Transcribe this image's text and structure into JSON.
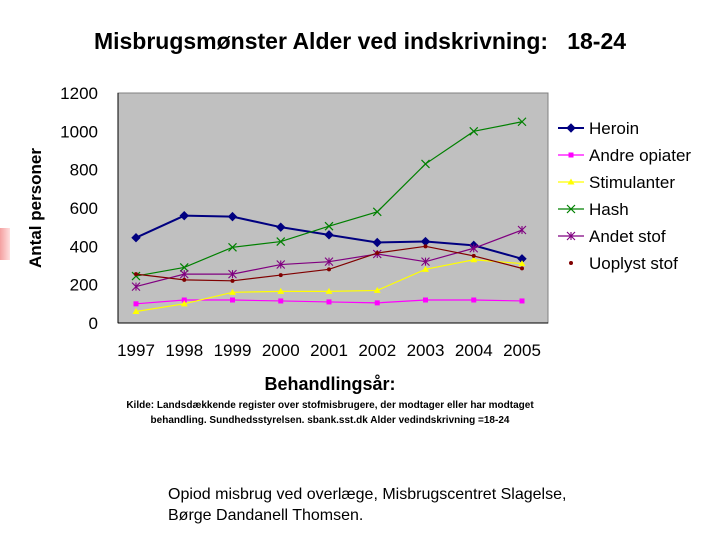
{
  "slide": {
    "title": "Misbrugsmønster Alder ved indskrivning:   18-24",
    "source_text": "Kilde: Landsdækkende register over stofmisbrugere, der modtager eller har modtaget behandling. Sundhedsstyrelsen. sbank.sst.dk Alder vedindskrivning =18-24",
    "footer_line1": "Opiod misbrug ved overlæge, Misbrugscentret Slagelse,",
    "footer_line2": "Børge Dandanell Thomsen."
  },
  "chart_data": {
    "type": "line",
    "title": "Misbrugsmønster Alder ved indskrivning:   18-24",
    "xlabel": "Behandlingsår:",
    "ylabel": "Antal personer",
    "categories": [
      "1997",
      "1998",
      "1999",
      "2000",
      "2001",
      "2002",
      "2003",
      "2004",
      "2005"
    ],
    "yticks": [
      "0",
      "200",
      "400",
      "600",
      "800",
      "1000",
      "1200"
    ],
    "ylim": [
      0,
      1200
    ],
    "grid": false,
    "plot_background": "#c0c0c0",
    "legend_position": "right",
    "series": [
      {
        "name": "Heroin",
        "color": "#000080",
        "marker": "diamond",
        "values": [
          445,
          560,
          555,
          500,
          460,
          420,
          425,
          405,
          335
        ]
      },
      {
        "name": "Andre opiater",
        "color": "#ff00ff",
        "marker": "square",
        "values": [
          100,
          120,
          120,
          115,
          110,
          105,
          120,
          120,
          115
        ]
      },
      {
        "name": "Stimulanter",
        "color": "#ffff00",
        "marker": "triangle",
        "values": [
          60,
          100,
          160,
          165,
          165,
          170,
          280,
          330,
          310
        ]
      },
      {
        "name": "Hash",
        "color": "#008000",
        "marker": "x",
        "values": [
          245,
          290,
          395,
          425,
          505,
          580,
          830,
          1000,
          1050
        ]
      },
      {
        "name": "Andet stof",
        "color": "#800080",
        "marker": "star",
        "values": [
          190,
          255,
          255,
          305,
          320,
          360,
          320,
          390,
          485
        ]
      },
      {
        "name": "Uoplyst stof",
        "color": "#800000",
        "marker": "circle",
        "values": [
          255,
          225,
          220,
          250,
          280,
          365,
          400,
          350,
          285
        ]
      }
    ]
  }
}
